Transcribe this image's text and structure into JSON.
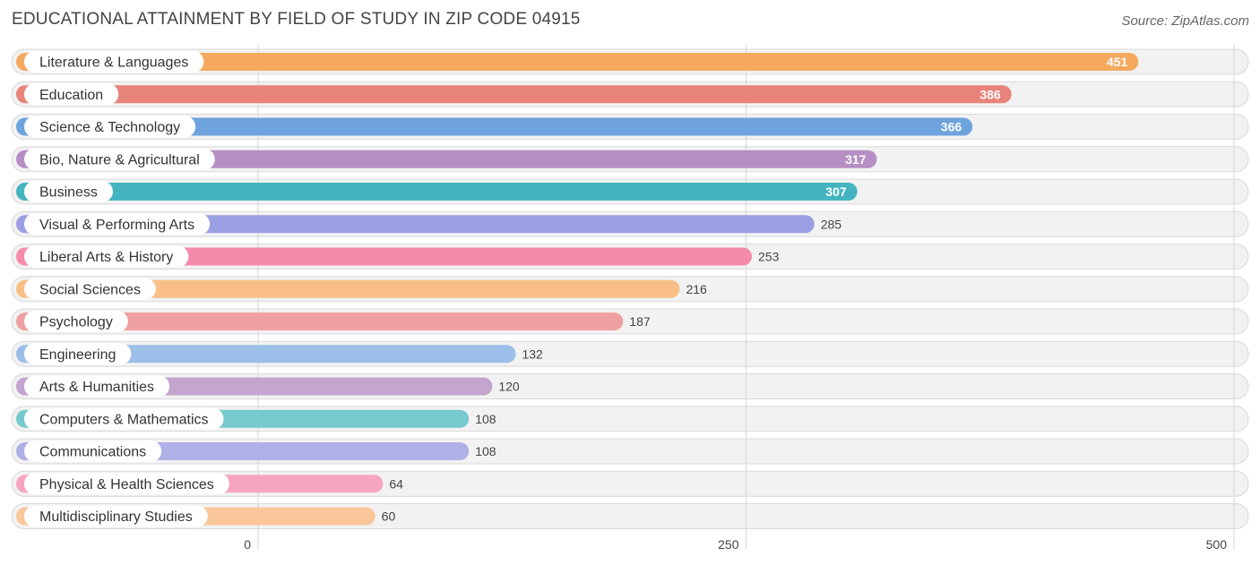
{
  "header": {
    "title": "EDUCATIONAL ATTAINMENT BY FIELD OF STUDY IN ZIP CODE 04915",
    "source": "Source: ZipAtlas.com"
  },
  "chart_data": {
    "type": "bar",
    "orientation": "horizontal",
    "title": "EDUCATIONAL ATTAINMENT BY FIELD OF STUDY IN ZIP CODE 04915",
    "xlabel": "",
    "ylabel": "",
    "xlim": [
      0,
      500
    ],
    "ticks": [
      0,
      250,
      500
    ],
    "grid": true,
    "categories": [
      "Literature & Languages",
      "Education",
      "Science & Technology",
      "Bio, Nature & Agricultural",
      "Business",
      "Visual & Performing Arts",
      "Liberal Arts & History",
      "Social Sciences",
      "Psychology",
      "Engineering",
      "Arts & Humanities",
      "Computers & Mathematics",
      "Communications",
      "Physical & Health Sciences",
      "Multidisciplinary Studies"
    ],
    "values": [
      451,
      386,
      366,
      317,
      307,
      285,
      253,
      216,
      187,
      132,
      120,
      108,
      108,
      64,
      60
    ],
    "colors": [
      "#f5a95f",
      "#e8837a",
      "#6fa3de",
      "#b68fc4",
      "#44b5c0",
      "#9b9fe3",
      "#f58aab",
      "#f9bf86",
      "#eea0a0",
      "#9bbfe8",
      "#c5a4cf",
      "#76c9cc",
      "#aeb0e6",
      "#f6a5c1",
      "#f9c79a"
    ]
  }
}
